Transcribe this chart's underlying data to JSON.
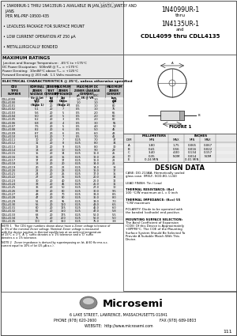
{
  "title_left_lines": [
    "• 1N4099UR-1 THRU 1N4135UR-1 AVAILABLE IN JAN, JANTX, JANTXY AND",
    "  JANS",
    "  PER MIL-PRF-19500-435",
    "",
    "• LEADLESS PACKAGE FOR SURFACE MOUNT",
    "",
    "• LOW CURRENT OPERATION AT 250 μA",
    "",
    "• METALLURGICALLY BONDED"
  ],
  "title_right_lines": [
    "1N4099UR-1",
    "thru",
    "1N4135UR-1",
    "and",
    "CDLL4099 thru CDLL4135"
  ],
  "max_ratings_title": "MAXIMUM RATINGS",
  "max_ratings_lines": [
    "Junction and Storage Temperature:  -65°C to +175°C",
    "DC Power Dissipation:  500mW @ Tₐₓ = +175°C",
    "Power Derating:  10mW/°C above Tₐₓ = +125°C",
    "Forward Derating @ 200 mA:  1.1 Volts maximum"
  ],
  "elec_char_title": "ELECTRICAL CHARACTERISTICS @ 25°C, unless otherwise specified",
  "table_data": [
    [
      "CDLL4099",
      "3.9",
      "20",
      "10",
      "1.0",
      "1.0",
      "100"
    ],
    [
      "CDLL4100",
      "4.3",
      "20",
      "10",
      "1.0",
      "1.0",
      "90"
    ],
    [
      "CDLL4101",
      "4.7",
      "20",
      "10",
      "0.5",
      "1.0",
      "80"
    ],
    [
      "CDLL4102",
      "5.1",
      "20",
      "7",
      "0.5",
      "1.0",
      "75"
    ],
    [
      "CDLL4103",
      "5.6",
      "20",
      "5",
      "0.5",
      "2.0",
      "65"
    ],
    [
      "CDLL4104",
      "6.0",
      "20",
      "5",
      "0.5",
      "2.0",
      "60"
    ],
    [
      "CDLL4105",
      "6.2",
      "20",
      "3",
      "0.5",
      "2.0",
      "60"
    ],
    [
      "CDLL4106",
      "6.8",
      "20",
      "4",
      "0.5",
      "3.0",
      "55"
    ],
    [
      "CDLL4107",
      "7.5",
      "20",
      "5",
      "0.5",
      "4.0",
      "50"
    ],
    [
      "CDLL4108",
      "8.2",
      "20",
      "6",
      "0.5",
      "5.0",
      "45"
    ],
    [
      "CDLL4109",
      "8.7",
      "20",
      "6",
      "0.5",
      "6.0",
      "43"
    ],
    [
      "CDLL4110",
      "9.1",
      "20",
      "7",
      "0.5",
      "7.0",
      "41"
    ],
    [
      "CDLL4111",
      "10",
      "20",
      "7",
      "0.25",
      "7.0",
      "37"
    ],
    [
      "CDLL4112",
      "11",
      "20",
      "8",
      "0.25",
      "8.0",
      "34"
    ],
    [
      "CDLL4113",
      "12",
      "20",
      "9",
      "0.25",
      "8.0",
      "30"
    ],
    [
      "CDLL4114",
      "13",
      "20",
      "10",
      "0.25",
      "9.0",
      "29"
    ],
    [
      "CDLL4115",
      "15",
      "20",
      "14",
      "0.25",
      "11.0",
      "25"
    ],
    [
      "CDLL4116",
      "16",
      "20",
      "15",
      "0.25",
      "12.0",
      "23"
    ],
    [
      "CDLL4117",
      "17",
      "20",
      "17",
      "0.25",
      "12.0",
      "22"
    ],
    [
      "CDLL4118",
      "18",
      "20",
      "20",
      "0.25",
      "14.0",
      "21"
    ],
    [
      "CDLL4119",
      "20",
      "20",
      "22",
      "0.25",
      "14.0",
      "18"
    ],
    [
      "CDLL4120",
      "22",
      "20",
      "23",
      "0.25",
      "16.0",
      "17"
    ],
    [
      "CDLL4121",
      "24",
      "20",
      "25",
      "0.25",
      "17.0",
      "15"
    ],
    [
      "CDLL4122",
      "27",
      "20",
      "35",
      "0.25",
      "20.0",
      "14"
    ],
    [
      "CDLL4123",
      "30",
      "20",
      "40",
      "0.25",
      "22.0",
      "12"
    ],
    [
      "CDLL4124",
      "33",
      "20",
      "45",
      "0.25",
      "25.0",
      "11"
    ],
    [
      "CDLL4125",
      "36",
      "20",
      "50",
      "0.25",
      "27.0",
      "10"
    ],
    [
      "CDLL4126",
      "39",
      "20",
      "60",
      "0.25",
      "30.0",
      "9.5"
    ],
    [
      "CDLL4127",
      "43",
      "20",
      "70",
      "0.25",
      "33.0",
      "8.5"
    ],
    [
      "CDLL4128",
      "47",
      "20",
      "80",
      "0.25",
      "36.0",
      "8.0"
    ],
    [
      "CDLL4129",
      "51",
      "20",
      "95",
      "0.25",
      "39.0",
      "7.0"
    ],
    [
      "CDLL4130",
      "56",
      "20",
      "110",
      "0.25",
      "43.0",
      "6.5"
    ],
    [
      "CDLL4131",
      "60",
      "20",
      "125",
      "0.25",
      "46.0",
      "6.0"
    ],
    [
      "CDLL4132",
      "62",
      "20",
      "150",
      "0.25",
      "47.0",
      "5.8"
    ],
    [
      "CDLL4133",
      "68",
      "20",
      "175",
      "0.25",
      "52.0",
      "5.5"
    ],
    [
      "CDLL4134",
      "75",
      "20",
      "200",
      "0.25",
      "56.0",
      "5.0"
    ],
    [
      "CDLL4135",
      "100",
      "20",
      "350",
      "0.25",
      "75.0",
      "3.8"
    ]
  ],
  "note1_lines": [
    "NOTE 1   The CDU type numbers shown above have a Zener voltage tolerance of",
    "± 5% of the nominal Zener voltage. Nominal Zener voltage is measured",
    "with the device junction in thermal equilibrium at an ambient temperature",
    "of 25°C ± 1°C. A 'C' suffix denotes a ± 1% tolerance and a 'D' suffix",
    "denotes a ± 1% tolerance."
  ],
  "note2_lines": [
    "NOTE 2   Zener impedance is derived by superimposing on Izt, A 60 Hz rms a.c.",
    "current equal to 10% of Izt (25 μA a.c.)."
  ],
  "design_data_lines": [
    [
      "CASE: DO-213AA, Hermetically sealed",
      false
    ],
    [
      "glass case. (MELF, SOD-80, LL34)",
      false
    ],
    [
      "",
      false
    ],
    [
      "LEAD FINISH: Tin / Lead",
      false
    ],
    [
      "",
      false
    ],
    [
      "THERMAL RESISTANCE: (θⱼᴄ)",
      true
    ],
    [
      "100 °C/W maximum at L = 0 inch",
      false
    ],
    [
      "",
      false
    ],
    [
      "THERMAL IMPEDANCE: (θⱼᴄᴄ) 55",
      true
    ],
    [
      "°C/W maximum",
      false
    ],
    [
      "",
      false
    ],
    [
      "POLARITY: Diode to be operated with",
      false
    ],
    [
      "the banded (cathode) end positive.",
      false
    ],
    [
      "",
      false
    ],
    [
      "MOUNTING SURFACE SELECTION:",
      true
    ],
    [
      "The Axial Coefficient of Expansion",
      false
    ],
    [
      "(COE) Of this Device is Approximately",
      false
    ],
    [
      "+8PPM/°C. The COE of the Mounting",
      false
    ],
    [
      "Surface System Should Be Selected To",
      false
    ],
    [
      "Provide A Suitable Match With This",
      false
    ],
    [
      "Device.",
      false
    ]
  ],
  "mm_rows": [
    [
      "A",
      "1.80",
      "1.75",
      "0.065",
      "0.067"
    ],
    [
      "B",
      "0.41",
      "0.56",
      "0.016",
      "0.022"
    ],
    [
      "C",
      "3.40",
      "4.00",
      "0.134",
      "0.157"
    ],
    [
      "D",
      "0.35",
      "NOM",
      "0.014",
      "NOM"
    ],
    [
      "E",
      "0.24 MIN",
      "",
      "0.01 MIN",
      ""
    ]
  ],
  "footer_address": "6 LAKE STREET, LAWRENCE, MASSACHUSETTS 01841",
  "footer_phone": "PHONE (978) 620-2600",
  "footer_fax": "FAX (978) 689-0803",
  "footer_website": "WEBSITE:  http://www.microsemi.com",
  "footer_page": "111",
  "light_gray": "#e8e8e8",
  "mid_gray": "#c8c8c8",
  "dark_border": "#444444"
}
